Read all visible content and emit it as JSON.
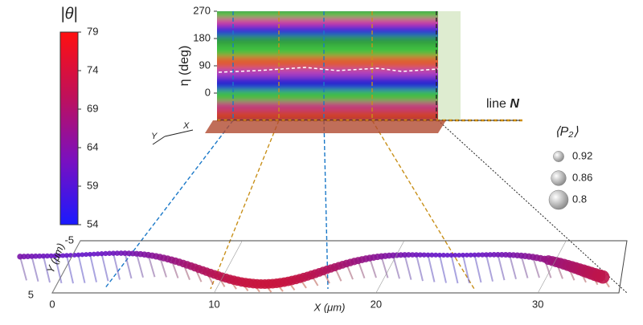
{
  "colorbar": {
    "title": "|θ|",
    "lim": [
      54,
      79
    ],
    "ticks": [
      54,
      59,
      64,
      69,
      74,
      79
    ],
    "colors": [
      "#1a1aff",
      "#7a10c0",
      "#c0105a",
      "#ff1010"
    ]
  },
  "map": {
    "ylabel": "η (deg)",
    "ylim": [
      -90,
      270
    ],
    "yticks": [
      0,
      90,
      180,
      270
    ],
    "line_label": "line",
    "line_label_bold": "N"
  },
  "legend": {
    "title": "⟨P₂⟩",
    "entries": [
      0.92,
      0.86,
      0.8
    ]
  },
  "plot3d": {
    "axis_x": "X",
    "axis_y": "Y",
    "xlabel": "X (μm)",
    "ylabel": "Y (μm)",
    "xlim": [
      0,
      35
    ],
    "xticks": [
      0,
      10,
      20,
      30
    ],
    "ylim": [
      -5,
      5
    ],
    "yticks": [
      -5,
      5
    ]
  }
}
